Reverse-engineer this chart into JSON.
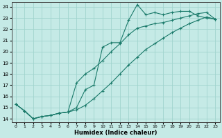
{
  "xlabel": "Humidex (Indice chaleur)",
  "bg_color": "#c5eae6",
  "grid_color": "#a0d4ce",
  "line_color": "#1a7a6a",
  "xlim": [
    -0.5,
    23.5
  ],
  "ylim": [
    13.7,
    24.4
  ],
  "xticks": [
    0,
    1,
    2,
    3,
    4,
    5,
    6,
    7,
    8,
    9,
    10,
    11,
    12,
    13,
    14,
    15,
    16,
    17,
    18,
    19,
    20,
    21,
    22,
    23
  ],
  "yticks": [
    14,
    15,
    16,
    17,
    18,
    19,
    20,
    21,
    22,
    23,
    24
  ],
  "line1_x": [
    0,
    1,
    2,
    3,
    4,
    5,
    6,
    7,
    8,
    9,
    10,
    11,
    12,
    13,
    14,
    15,
    16,
    17,
    18,
    19,
    20,
    21,
    22,
    23
  ],
  "line1_y": [
    15.3,
    14.7,
    14.0,
    14.2,
    14.3,
    14.5,
    14.6,
    15.0,
    16.6,
    17.0,
    20.4,
    20.8,
    20.8,
    22.8,
    24.2,
    23.3,
    23.5,
    23.3,
    23.5,
    23.6,
    23.6,
    23.2,
    23.0,
    22.9
  ],
  "line2_x": [
    0,
    1,
    2,
    3,
    4,
    5,
    6,
    7,
    8,
    9,
    10,
    11,
    12,
    13,
    14,
    15,
    16,
    17,
    18,
    19,
    20,
    21,
    22,
    23
  ],
  "line2_y": [
    15.3,
    14.7,
    14.0,
    14.2,
    14.3,
    14.5,
    14.6,
    17.2,
    18.0,
    18.5,
    19.2,
    20.0,
    20.7,
    21.5,
    22.1,
    22.3,
    22.5,
    22.6,
    22.8,
    23.0,
    23.2,
    23.4,
    23.5,
    22.9
  ],
  "line3_x": [
    0,
    1,
    2,
    3,
    4,
    5,
    6,
    7,
    8,
    9,
    10,
    11,
    12,
    13,
    14,
    15,
    16,
    17,
    18,
    19,
    20,
    21,
    22,
    23
  ],
  "line3_y": [
    15.3,
    14.7,
    14.0,
    14.2,
    14.3,
    14.5,
    14.6,
    14.8,
    15.2,
    15.8,
    16.5,
    17.2,
    18.0,
    18.8,
    19.5,
    20.2,
    20.7,
    21.2,
    21.7,
    22.1,
    22.5,
    22.8,
    23.1,
    22.9
  ]
}
